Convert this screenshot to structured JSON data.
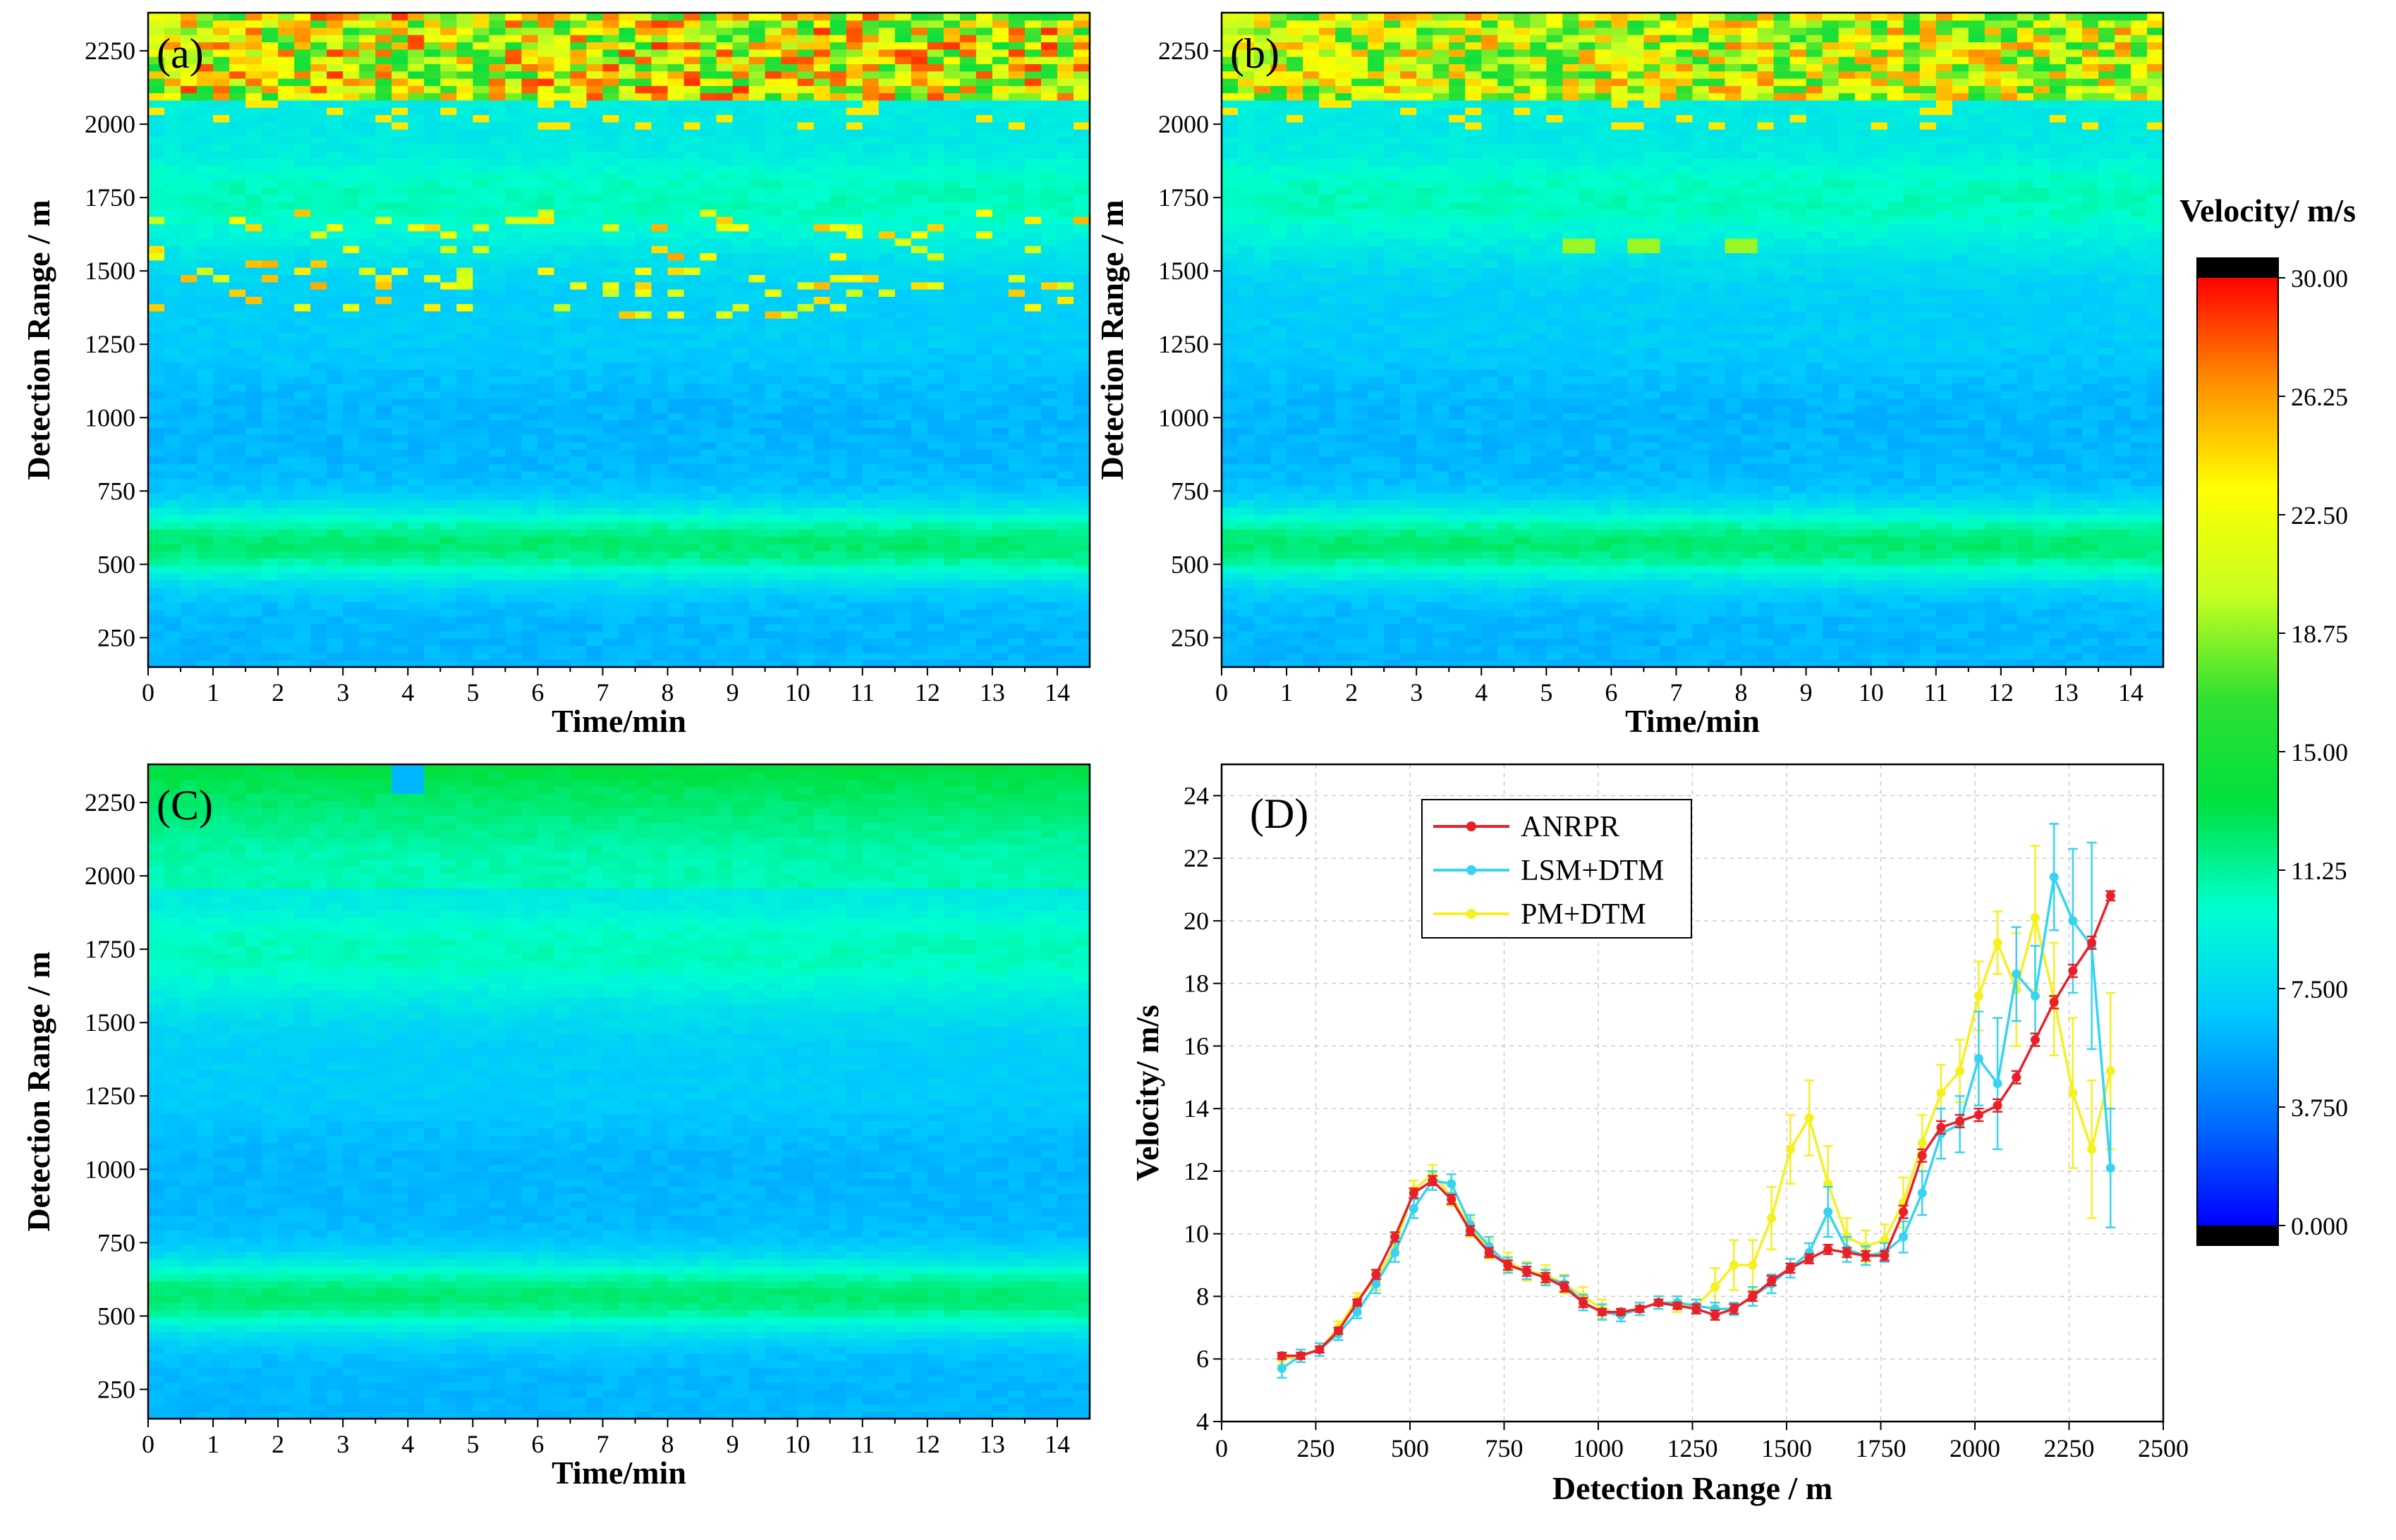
{
  "colors": {
    "colormap": [
      "#000000",
      "#0000ff",
      "#0070ff",
      "#00c8ff",
      "#00ffd0",
      "#00e040",
      "#30e030",
      "#c8ff20",
      "#ffff00",
      "#ff9000",
      "#ff0000",
      "#000000"
    ],
    "ANRPR": "#e8202a",
    "LSM+DTM": "#36d4f0",
    "PM+DTM": "#f5f020"
  },
  "colorbar": {
    "title": "Velocity/ m/s",
    "ticks": [
      "30.00",
      "26.25",
      "22.50",
      "18.75",
      "15.00",
      "11.25",
      "7.500",
      "3.750",
      "0.000"
    ]
  },
  "chart_data": [
    {
      "type": "heatmap",
      "panel_label": "(a)",
      "xlabel": "Time/min",
      "ylabel": "Detection Range / m",
      "xlim": [
        0,
        14.5
      ],
      "ylim": [
        150,
        2380
      ],
      "x_ticks": [
        "0",
        "1",
        "2",
        "3",
        "4",
        "5",
        "6",
        "7",
        "8",
        "9",
        "10",
        "11",
        "12",
        "13",
        "14"
      ],
      "y_ticks": [
        "250",
        "500",
        "750",
        "1000",
        "1250",
        "1500",
        "1750",
        "2000",
        "2250"
      ],
      "clim": [
        0,
        30
      ],
      "variant": "noisy"
    },
    {
      "type": "heatmap",
      "panel_label": "(b)",
      "xlabel": "Time/min",
      "ylabel": "Detection Range / m",
      "xlim": [
        0,
        14.5
      ],
      "ylim": [
        150,
        2380
      ],
      "x_ticks": [
        "0",
        "1",
        "2",
        "3",
        "4",
        "5",
        "6",
        "7",
        "8",
        "9",
        "10",
        "11",
        "12",
        "13",
        "14"
      ],
      "y_ticks": [
        "250",
        "500",
        "750",
        "1000",
        "1250",
        "1500",
        "1750",
        "2000",
        "2250"
      ],
      "clim": [
        0,
        30
      ],
      "variant": "medium"
    },
    {
      "type": "heatmap",
      "panel_label": "(C)",
      "xlabel": "Time/min",
      "ylabel": "Detection Range / m",
      "xlim": [
        0,
        14.5
      ],
      "ylim": [
        150,
        2380
      ],
      "x_ticks": [
        "0",
        "1",
        "2",
        "3",
        "4",
        "5",
        "6",
        "7",
        "8",
        "9",
        "10",
        "11",
        "12",
        "13",
        "14"
      ],
      "y_ticks": [
        "250",
        "500",
        "750",
        "1000",
        "1250",
        "1500",
        "1750",
        "2000",
        "2250"
      ],
      "clim": [
        0,
        30
      ],
      "variant": "smooth"
    },
    {
      "type": "line",
      "panel_label": "(D)",
      "xlabel": "Detection Range / m",
      "ylabel": "Velocity/ m/s",
      "xlim": [
        0,
        2500
      ],
      "ylim": [
        4,
        25
      ],
      "x_ticks": [
        "0",
        "250",
        "500",
        "750",
        "1000",
        "1250",
        "1500",
        "1750",
        "2000",
        "2250",
        "2500"
      ],
      "y_ticks": [
        "4",
        "6",
        "8",
        "10",
        "12",
        "14",
        "16",
        "18",
        "20",
        "22",
        "24"
      ],
      "grid": true,
      "legend": "top-left",
      "x": [
        160,
        210,
        260,
        310,
        360,
        410,
        460,
        510,
        560,
        610,
        660,
        710,
        760,
        810,
        860,
        910,
        960,
        1010,
        1060,
        1110,
        1160,
        1210,
        1260,
        1310,
        1360,
        1410,
        1460,
        1510,
        1560,
        1610,
        1660,
        1710,
        1760,
        1810,
        1860,
        1910,
        1960,
        2010,
        2060,
        2110,
        2160,
        2210,
        2260,
        2310,
        2360
      ],
      "series": [
        {
          "name": "ANRPR",
          "values": [
            6.1,
            6.1,
            6.3,
            6.9,
            7.8,
            8.7,
            9.9,
            11.3,
            11.7,
            11.1,
            10.1,
            9.4,
            9.0,
            8.8,
            8.6,
            8.3,
            7.8,
            7.5,
            7.5,
            7.6,
            7.8,
            7.7,
            7.6,
            7.4,
            7.6,
            8.0,
            8.5,
            8.9,
            9.2,
            9.5,
            9.4,
            9.3,
            9.3,
            10.7,
            12.5,
            13.4,
            13.6,
            13.8,
            14.1,
            15.0,
            16.2,
            17.4,
            18.4,
            19.3,
            20.8
          ],
          "errors": [
            0.1,
            0.1,
            0.1,
            0.1,
            0.1,
            0.15,
            0.15,
            0.15,
            0.15,
            0.15,
            0.15,
            0.15,
            0.15,
            0.15,
            0.15,
            0.15,
            0.15,
            0.1,
            0.1,
            0.1,
            0.1,
            0.1,
            0.15,
            0.15,
            0.15,
            0.15,
            0.15,
            0.15,
            0.15,
            0.15,
            0.15,
            0.15,
            0.15,
            0.2,
            0.2,
            0.2,
            0.2,
            0.2,
            0.2,
            0.2,
            0.2,
            0.2,
            0.2,
            0.2,
            0.15
          ]
        },
        {
          "name": "LSM+DTM",
          "values": [
            5.7,
            6.1,
            6.3,
            6.8,
            7.5,
            8.4,
            9.4,
            10.8,
            11.7,
            11.6,
            10.3,
            9.6,
            9.0,
            8.8,
            8.6,
            8.4,
            7.8,
            7.5,
            7.4,
            7.6,
            7.8,
            7.8,
            7.7,
            7.6,
            7.6,
            8.0,
            8.4,
            8.9,
            9.4,
            10.7,
            9.5,
            9.3,
            9.4,
            9.9,
            11.3,
            13.2,
            13.5,
            15.6,
            14.8,
            18.3,
            17.6,
            21.4,
            20.0,
            19.2,
            12.1
          ],
          "errors": [
            0.3,
            0.2,
            0.2,
            0.2,
            0.2,
            0.3,
            0.3,
            0.3,
            0.3,
            0.3,
            0.3,
            0.3,
            0.25,
            0.25,
            0.25,
            0.25,
            0.25,
            0.25,
            0.2,
            0.2,
            0.2,
            0.2,
            0.2,
            0.2,
            0.2,
            0.3,
            0.3,
            0.3,
            0.3,
            0.8,
            0.4,
            0.3,
            0.3,
            0.5,
            0.7,
            0.8,
            0.9,
            1.5,
            2.1,
            1.5,
            1.6,
            1.7,
            2.3,
            3.3,
            1.9
          ]
        },
        {
          "name": "PM+DTM",
          "values": [
            6.0,
            6.1,
            6.3,
            7.0,
            7.9,
            8.5,
            9.6,
            11.4,
            11.9,
            11.2,
            10.2,
            9.5,
            9.1,
            8.8,
            8.7,
            8.4,
            8.0,
            7.6,
            7.4,
            7.6,
            7.8,
            7.7,
            7.7,
            8.3,
            9.0,
            9.0,
            10.5,
            12.7,
            13.7,
            11.6,
            9.9,
            9.6,
            9.8,
            11.0,
            12.9,
            14.5,
            15.2,
            17.6,
            19.3,
            17.8,
            20.1,
            17.5,
            14.5,
            12.7,
            15.2
          ],
          "errors": [
            0.2,
            0.2,
            0.2,
            0.2,
            0.2,
            0.3,
            0.3,
            0.3,
            0.3,
            0.3,
            0.3,
            0.3,
            0.3,
            0.3,
            0.3,
            0.3,
            0.3,
            0.3,
            0.2,
            0.2,
            0.2,
            0.2,
            0.2,
            0.6,
            0.8,
            0.8,
            1.0,
            1.1,
            1.2,
            1.2,
            0.6,
            0.5,
            0.5,
            0.8,
            0.9,
            0.9,
            1.0,
            1.1,
            1.0,
            1.8,
            2.3,
            1.8,
            2.4,
            2.2,
            2.5
          ]
        }
      ]
    }
  ]
}
